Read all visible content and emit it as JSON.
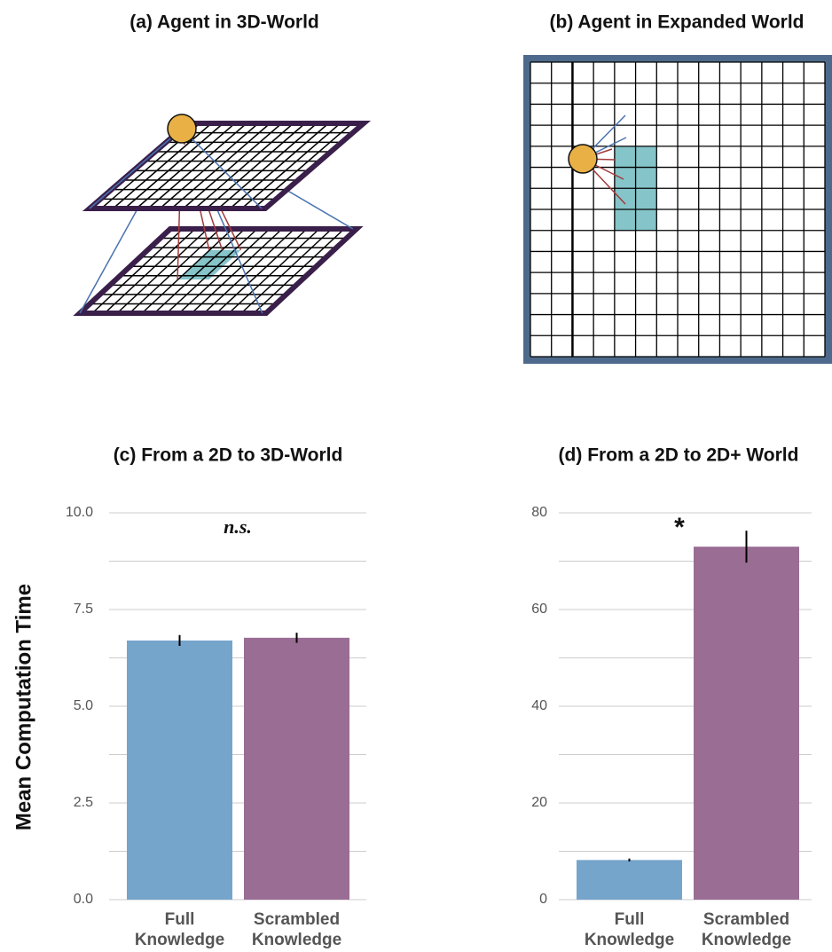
{
  "diagrams": [
    {
      "title": "(a) Agent in 3D-World"
    },
    {
      "title": "(b) Agent in Expanded World"
    }
  ],
  "chart_data": [
    {
      "type": "bar",
      "title": "(c) From a 2D to 3D-World",
      "ylabel": "Mean Computation Time",
      "categories": [
        "Full Knowledge",
        "Scrambled Knowledge"
      ],
      "values": [
        6.7,
        6.77
      ],
      "errors": [
        0.14,
        0.13
      ],
      "colors": [
        "#76a5cc",
        "#9a6d94"
      ],
      "ylim": [
        0,
        10
      ],
      "yticks": [
        {
          "value": 0,
          "label": "0.0"
        },
        2.5,
        {
          "value": 5,
          "label": "5.0"
        },
        7.5,
        {
          "value": 10,
          "label": "10.0"
        }
      ],
      "minor_yticks": [
        1.25,
        3.75,
        6.25,
        8.75
      ],
      "grid": true,
      "annotation": "n.s."
    },
    {
      "type": "bar",
      "title": "(d) From a 2D to 2D+ World",
      "categories": [
        "Full Knowledge",
        "Scrambled Knowledge"
      ],
      "values": [
        8.2,
        73.0
      ],
      "errors": [
        0.3,
        3.3
      ],
      "colors": [
        "#76a5cc",
        "#9a6d94"
      ],
      "ylim": [
        0,
        80
      ],
      "yticks": [
        0,
        20,
        40,
        60,
        80
      ],
      "minor_yticks": [
        10,
        30,
        50,
        70
      ],
      "grid": true,
      "annotation": "*"
    }
  ]
}
